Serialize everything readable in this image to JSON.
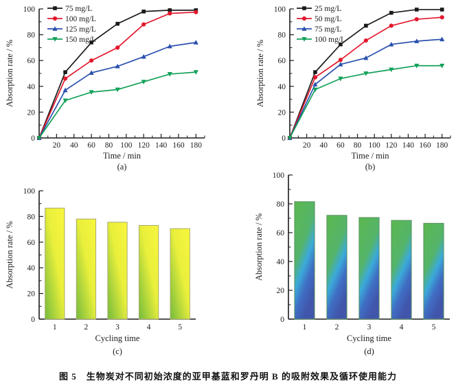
{
  "page": {
    "caption": "图 5　生物炭对不同初始浓度的亚甲基蓝和罗丹明 B 的吸附效果及循环使用能力"
  },
  "colors": {
    "axis": "#1a1a1a",
    "series_black": "#1a1a1a",
    "series_red": "#e2182d",
    "series_blue": "#2a50ae",
    "series_green": "#12a159"
  },
  "chart_data": [
    {
      "id": "a",
      "type": "line",
      "title": "",
      "xlabel": "Time  / min",
      "ylabel": "Absorption rate  / %",
      "sublabel": "(a)",
      "x": [
        0,
        30,
        60,
        90,
        120,
        150,
        180
      ],
      "xticks": [
        20,
        40,
        60,
        80,
        100,
        120,
        140,
        160,
        180
      ],
      "yticks": [
        0,
        20,
        40,
        60,
        80,
        100
      ],
      "xlim": [
        0,
        190
      ],
      "ylim": [
        0,
        100
      ],
      "grid": false,
      "legend_position": "top-left",
      "series": [
        {
          "name": "75 mg/L",
          "marker": "square",
          "color": "#1a1a1a",
          "values": [
            0,
            51,
            74,
            88.5,
            98,
            99,
            99
          ]
        },
        {
          "name": "100 mg/L",
          "marker": "circle",
          "color": "#e2182d",
          "values": [
            0,
            46,
            60,
            70,
            88,
            96.5,
            97.5
          ]
        },
        {
          "name": "125 mg/L",
          "marker": "triangle-up",
          "color": "#2a50ae",
          "values": [
            0,
            37,
            50.5,
            55.5,
            63,
            71,
            74
          ]
        },
        {
          "name": "150 mg/L",
          "marker": "triangle-down",
          "color": "#12a159",
          "values": [
            0,
            29,
            35.5,
            37.5,
            43.5,
            49.5,
            51
          ]
        }
      ]
    },
    {
      "id": "b",
      "type": "line",
      "title": "",
      "xlabel": "Time  / min",
      "ylabel": "Absorption rate  / %",
      "sublabel": "(b)",
      "x": [
        0,
        30,
        60,
        90,
        120,
        150,
        180
      ],
      "xticks": [
        20,
        40,
        60,
        80,
        100,
        120,
        140,
        160,
        180
      ],
      "yticks": [
        0,
        20,
        40,
        60,
        80,
        100
      ],
      "xlim": [
        0,
        190
      ],
      "ylim": [
        0,
        100
      ],
      "grid": false,
      "legend_position": "top-left",
      "series": [
        {
          "name": "25 mg/L",
          "marker": "square",
          "color": "#1a1a1a",
          "values": [
            0,
            51,
            72.5,
            87,
            97,
            99.5,
            99.5
          ]
        },
        {
          "name": "50 mg/L",
          "marker": "circle",
          "color": "#e2182d",
          "values": [
            0,
            47,
            60.5,
            75.5,
            87,
            92,
            93.5
          ]
        },
        {
          "name": "75 mg/L",
          "marker": "triangle-up",
          "color": "#2a50ae",
          "values": [
            0,
            41.5,
            57,
            62,
            72.5,
            75,
            76.5
          ]
        },
        {
          "name": "100 mg/L",
          "marker": "triangle-down",
          "color": "#12a159",
          "values": [
            0,
            37.5,
            46,
            50,
            53,
            56,
            56
          ]
        }
      ]
    },
    {
      "id": "c",
      "type": "bar",
      "title": "",
      "xlabel": "Cycling time",
      "ylabel": "Absorption rate  / %",
      "sublabel": "(c)",
      "categories": [
        "1",
        "2",
        "3",
        "4",
        "5"
      ],
      "values": [
        86.5,
        78,
        75.5,
        73,
        70.5
      ],
      "yticks": [
        0,
        20,
        40,
        60,
        80,
        100
      ],
      "ylim": [
        0,
        100
      ],
      "grid": false,
      "bar_style": {
        "stroke": "#a9a96e",
        "gradient": {
          "x1": 1,
          "y1": 0,
          "x2": 0,
          "y2": 1,
          "stops": [
            {
              "o": 0,
              "c": "#f8f63e"
            },
            {
              "o": 0.45,
              "c": "#e9ef3b"
            },
            {
              "o": 1,
              "c": "#74bb3d"
            }
          ]
        }
      }
    },
    {
      "id": "d",
      "type": "bar",
      "title": "",
      "xlabel": "Cycling time",
      "ylabel": "Absorption rate  / %",
      "sublabel": "(d)",
      "categories": [
        "1",
        "2",
        "3",
        "4",
        "5"
      ],
      "values": [
        81.5,
        72,
        70.5,
        68.5,
        66.5
      ],
      "yticks": [
        0,
        20,
        40,
        60,
        80,
        100
      ],
      "ylim": [
        0,
        100
      ],
      "grid": false,
      "bar_style": {
        "stroke": "#58905f",
        "gradient": {
          "x1": 0,
          "y1": 0,
          "x2": 0.45,
          "y2": 1,
          "stops": [
            {
              "o": 0,
              "c": "#5cb84f"
            },
            {
              "o": 0.45,
              "c": "#54b46a"
            },
            {
              "o": 0.63,
              "c": "#3baad9"
            },
            {
              "o": 0.8,
              "c": "#3f6ec3"
            },
            {
              "o": 1,
              "c": "#4156ab"
            }
          ]
        }
      }
    }
  ]
}
